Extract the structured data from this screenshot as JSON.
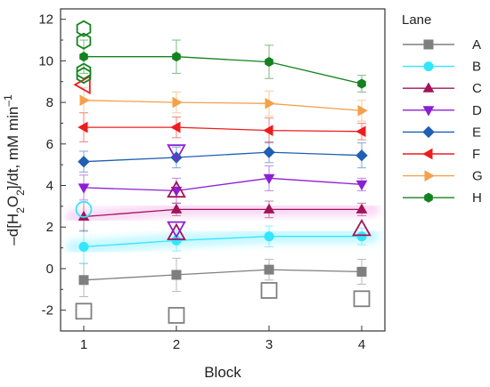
{
  "chart_data": {
    "type": "line",
    "xlabel": "Block",
    "ylabel_parts": [
      "–d[H",
      "2",
      "O",
      "2",
      "]/dt, mM min",
      "–1"
    ],
    "x": [
      1,
      2,
      3,
      4
    ],
    "xlim": [
      0.75,
      4.25
    ],
    "ylim": [
      -3,
      12.5
    ],
    "xticks": [
      1,
      2,
      3,
      4
    ],
    "yticks": [
      -2,
      0,
      2,
      4,
      6,
      8,
      10,
      12
    ],
    "legend_title": "Lane",
    "legend_position": "right",
    "series": [
      {
        "name": "A",
        "color": "#7f7f7f",
        "marker": "square",
        "values": [
          -0.55,
          -0.3,
          -0.05,
          -0.15
        ],
        "errors": [
          0.8,
          0.8,
          0.5,
          0.6
        ]
      },
      {
        "name": "B",
        "color": "#33e6ff",
        "marker": "circle",
        "values": [
          1.05,
          1.35,
          1.55,
          1.55
        ],
        "errors": [
          0.8,
          0.5,
          0.5,
          0.4
        ]
      },
      {
        "name": "C",
        "color": "#a2145a",
        "marker": "triangle-up",
        "values": [
          2.5,
          2.85,
          2.85,
          2.85
        ],
        "errors": [
          0.7,
          0.3,
          0.4,
          0.3
        ]
      },
      {
        "name": "D",
        "color": "#8c1fd6",
        "marker": "triangle-down",
        "values": [
          3.9,
          3.75,
          4.35,
          4.05
        ],
        "errors": [
          0.6,
          0.6,
          0.6,
          0.3
        ]
      },
      {
        "name": "E",
        "color": "#1f5fb4",
        "marker": "diamond",
        "values": [
          5.15,
          5.35,
          5.6,
          5.45
        ],
        "errors": [
          0.5,
          0.5,
          0.5,
          0.6
        ]
      },
      {
        "name": "F",
        "color": "#ee1c1c",
        "marker": "triangle-left",
        "values": [
          6.8,
          6.8,
          6.65,
          6.6
        ],
        "errors": [
          0.7,
          0.5,
          0.6,
          0.4
        ]
      },
      {
        "name": "G",
        "color": "#f5a04b",
        "marker": "triangle-right",
        "values": [
          8.1,
          8.0,
          7.95,
          7.6
        ],
        "errors": [
          0.6,
          0.5,
          0.6,
          0.5
        ]
      },
      {
        "name": "H",
        "color": "#14821e",
        "marker": "hexagon",
        "values": [
          10.2,
          10.2,
          9.95,
          8.9
        ],
        "errors": [
          0.8,
          0.8,
          0.8,
          0.4
        ]
      }
    ],
    "outliers": [
      {
        "series": "A",
        "marker": "square",
        "points": [
          [
            1,
            -2.05
          ],
          [
            2,
            -2.25
          ],
          [
            3,
            -1.05
          ],
          [
            4,
            -1.45
          ]
        ]
      },
      {
        "series": "B",
        "marker": "circle",
        "points": [
          [
            1,
            2.85
          ]
        ]
      },
      {
        "series": "C",
        "marker": "triangle-up",
        "points": [
          [
            2,
            3.75
          ],
          [
            2,
            1.7
          ],
          [
            4,
            1.9
          ]
        ]
      },
      {
        "series": "D",
        "marker": "triangle-down",
        "points": [
          [
            2,
            5.65
          ],
          [
            2,
            1.95
          ]
        ]
      },
      {
        "series": "F",
        "marker": "triangle-left",
        "points": [
          [
            1,
            8.85
          ]
        ]
      },
      {
        "series": "H",
        "marker": "hexagon",
        "points": [
          [
            1,
            11.55
          ],
          [
            1,
            10.95
          ],
          [
            1,
            9.5
          ],
          [
            1,
            9.3
          ]
        ]
      }
    ],
    "grid": false
  }
}
